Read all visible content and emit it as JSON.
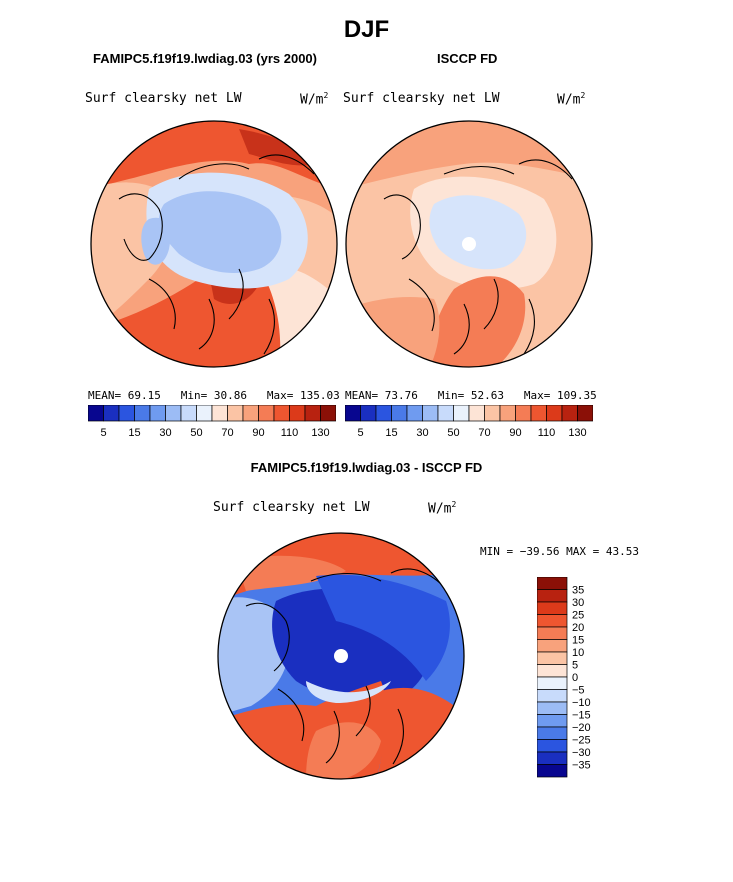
{
  "title": "DJF",
  "panels": {
    "model": {
      "title": "FAMIPC5.f19f19.lwdiag.03 (yrs 2000)",
      "variable": "Surf clearsky net LW",
      "units": "W/m",
      "units_exp": "2",
      "mean_label": "MEAN=",
      "mean": "69.15",
      "min_label": "Min=",
      "min": "30.86",
      "max_label": "Max=",
      "max": "135.03"
    },
    "obs": {
      "title": "ISCCP FD",
      "variable": "Surf clearsky net LW",
      "units": "W/m",
      "units_exp": "2",
      "mean_label": "MEAN=",
      "mean": "73.76",
      "min_label": "Min=",
      "min": "52.63",
      "max_label": "Max=",
      "max": "109.35"
    },
    "diff": {
      "title": "FAMIPC5.f19f19.lwdiag.03 - ISCCP FD",
      "variable": "Surf clearsky net LW",
      "units": "W/m",
      "units_exp": "2",
      "minmax": "MIN = −39.56 MAX =  43.53"
    }
  },
  "colorbars": {
    "abs_ticks": [
      "5",
      "15",
      "30",
      "50",
      "70",
      "90",
      "110",
      "130"
    ],
    "abs_colors": [
      "#08068f",
      "#1a2fc0",
      "#2b55e0",
      "#4a7ae8",
      "#6f9bf0",
      "#9cbcf5",
      "#c8dbfb",
      "#eaf2fc",
      "#fde4d6",
      "#fbc4a5",
      "#f8a27c",
      "#f47c55",
      "#ee5630",
      "#dc3a1a",
      "#b82210",
      "#8b1007"
    ],
    "diff_ticks": [
      "35",
      "30",
      "25",
      "20",
      "15",
      "10",
      "5",
      "0",
      "−5",
      "−10",
      "−15",
      "−20",
      "−25",
      "−30",
      "−35"
    ],
    "diff_colors": [
      "#8b1007",
      "#b82210",
      "#dc3a1a",
      "#ee5630",
      "#f47c55",
      "#f8a27c",
      "#fbc4a5",
      "#fde4d6",
      "#eaf2fc",
      "#c8dbfb",
      "#9cbcf5",
      "#6f9bf0",
      "#4a7ae8",
      "#2b55e0",
      "#1a2fc0",
      "#08068f"
    ]
  },
  "map_colors": {
    "deep_red": "#c8321a",
    "red": "#ee5630",
    "orange": "#f47c55",
    "salmon": "#f8a27c",
    "peach": "#fbc4a5",
    "cream": "#fde4d6",
    "pale_blue": "#d6e4fb",
    "light_blue": "#a9c4f5",
    "blue": "#4a7ae8",
    "royal_blue": "#2b55e0",
    "dark_blue": "#1a2fc0"
  }
}
